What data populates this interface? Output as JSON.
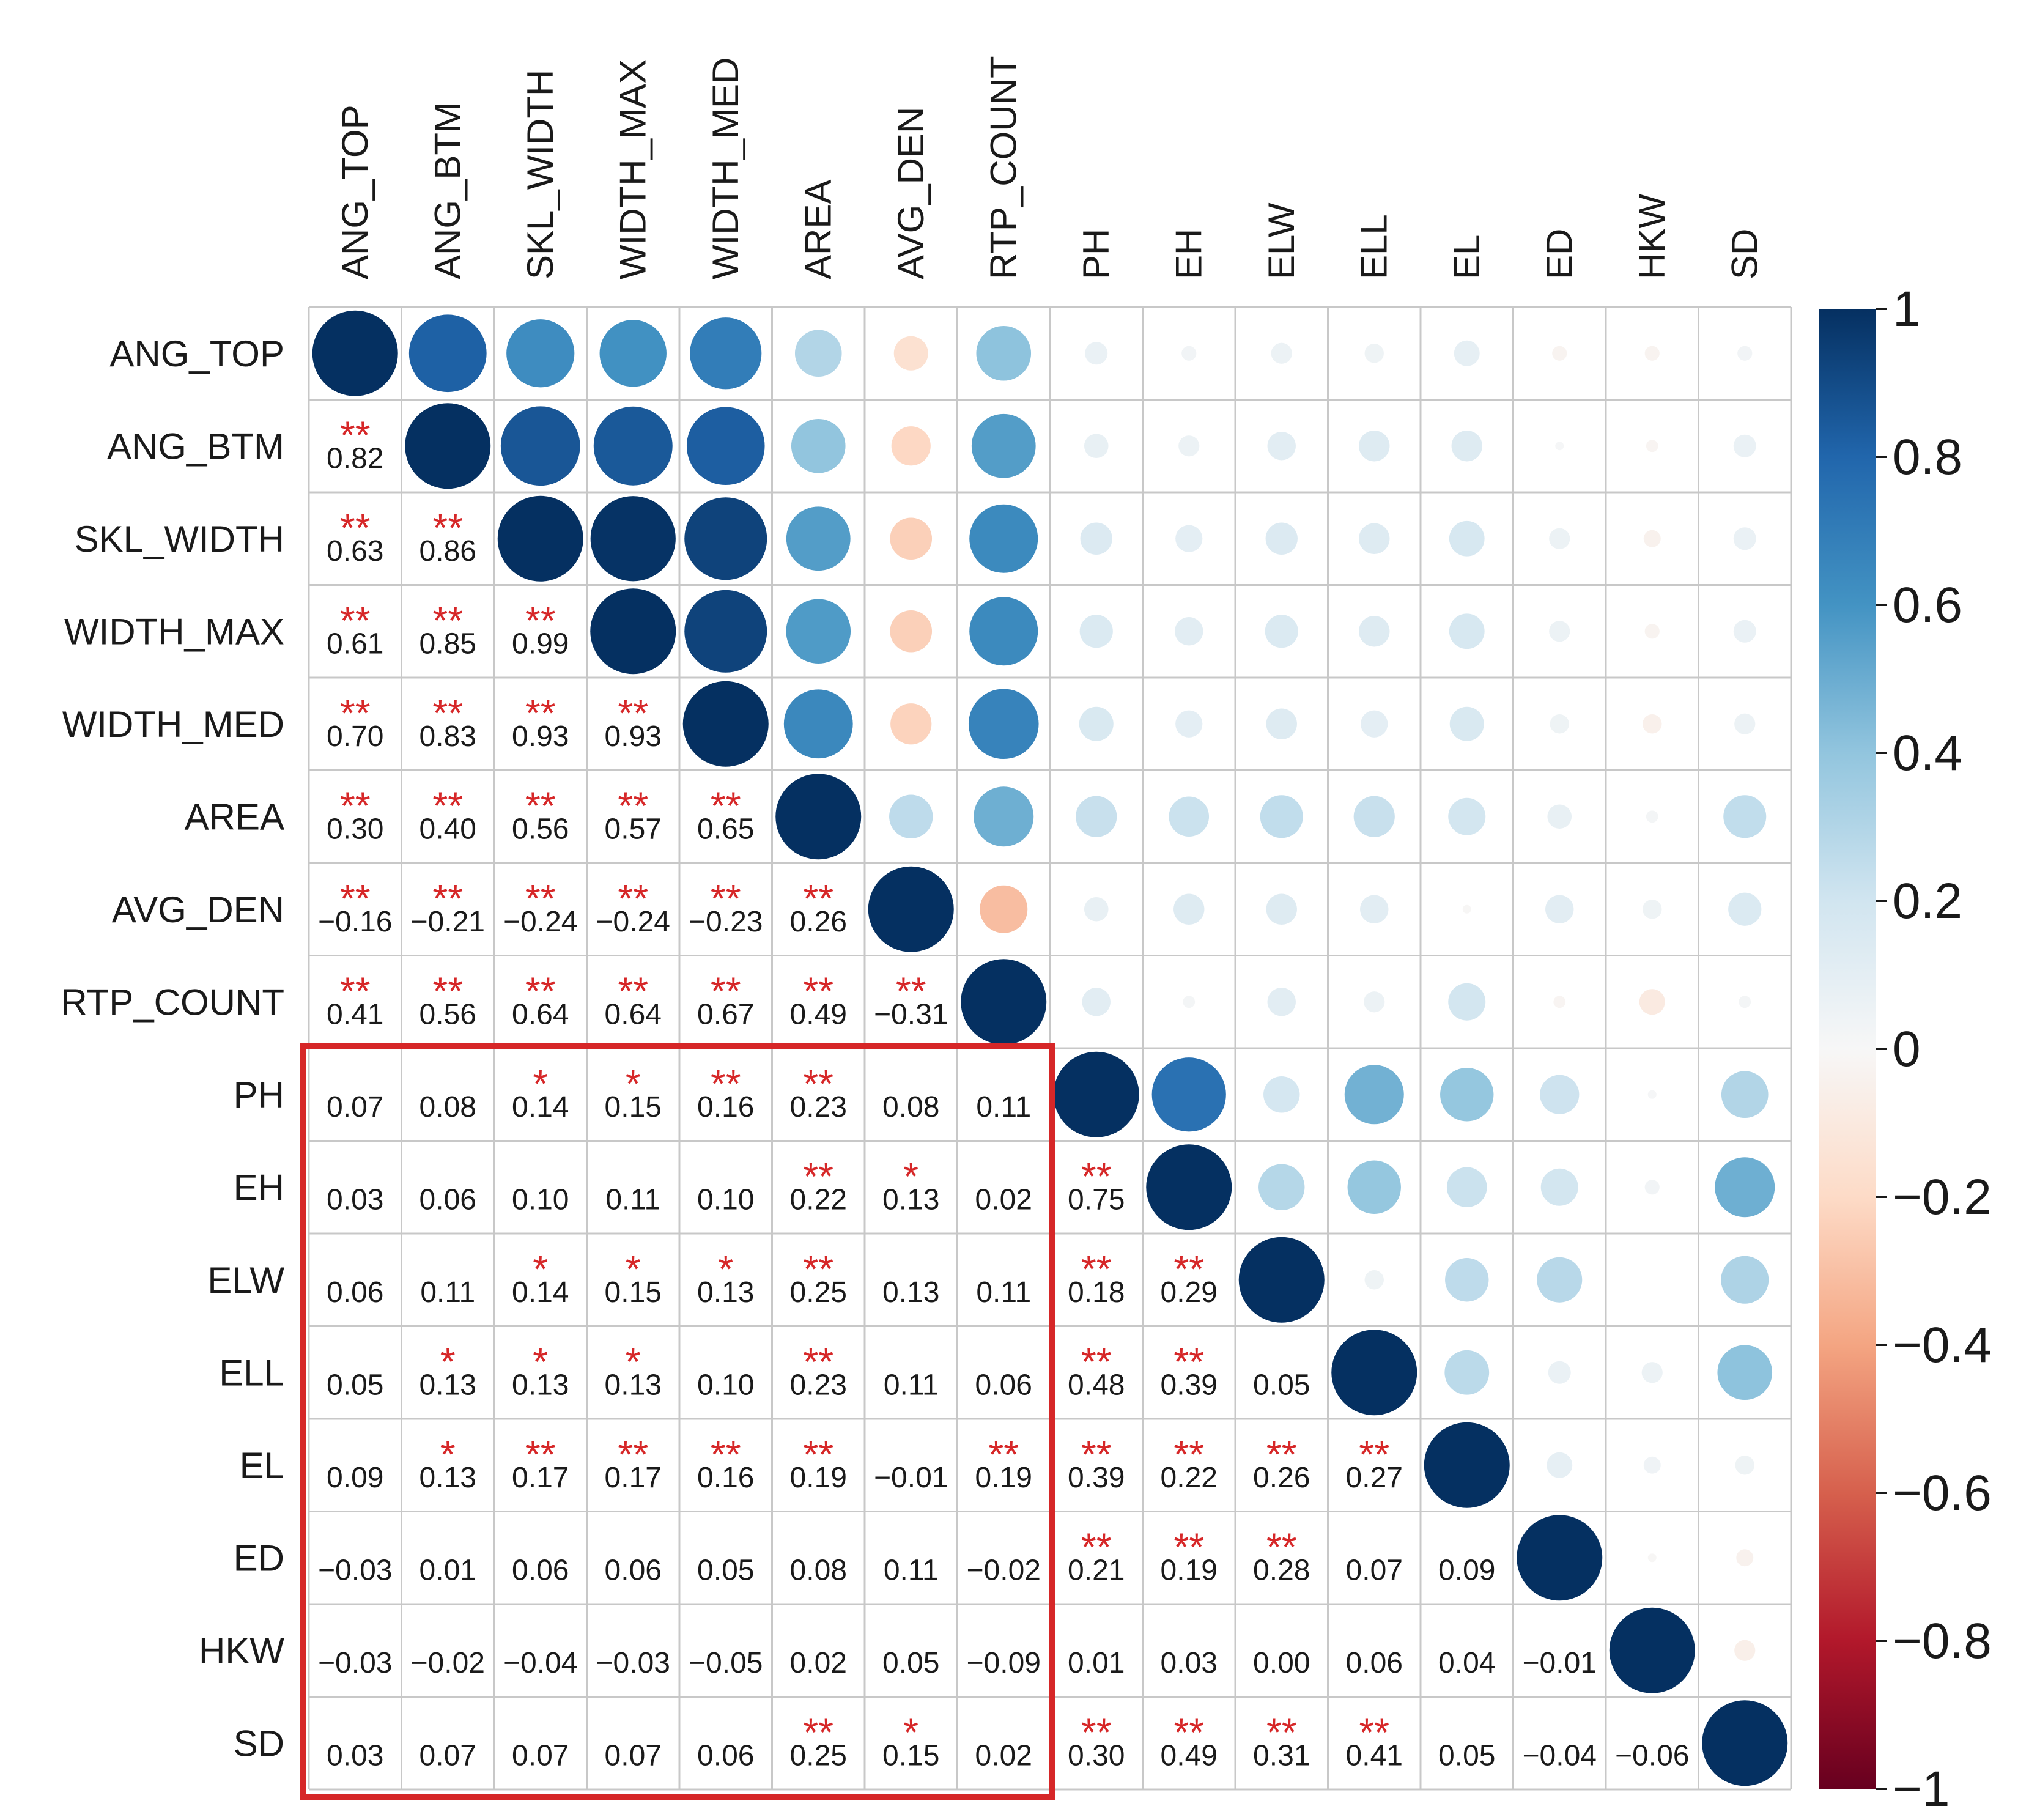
{
  "chart_data": {
    "type": "heatmap",
    "style": "correlation-matrix (lower triangle: coefficients with significance stars, upper triangle: circles sized and colored by coefficient)",
    "variables": [
      "ANG_TOP",
      "ANG_BTM",
      "SKL_WIDTH",
      "WIDTH_MAX",
      "WIDTH_MED",
      "AREA",
      "AVG_DEN",
      "RTP_COUNT",
      "PH",
      "EH",
      "ELW",
      "ELL",
      "EL",
      "ED",
      "HKW",
      "SD"
    ],
    "matrix": [
      [
        1.0,
        0.82,
        0.63,
        0.61,
        0.7,
        0.3,
        -0.16,
        0.41,
        0.07,
        0.03,
        0.06,
        0.05,
        0.09,
        -0.03,
        -0.03,
        0.03
      ],
      [
        0.82,
        1.0,
        0.86,
        0.85,
        0.83,
        0.4,
        -0.21,
        0.56,
        0.08,
        0.06,
        0.11,
        0.13,
        0.13,
        0.01,
        -0.02,
        0.07
      ],
      [
        0.63,
        0.86,
        1.0,
        0.99,
        0.93,
        0.56,
        -0.24,
        0.64,
        0.14,
        0.1,
        0.14,
        0.13,
        0.17,
        0.06,
        -0.04,
        0.07
      ],
      [
        0.61,
        0.85,
        0.99,
        1.0,
        0.93,
        0.57,
        -0.24,
        0.64,
        0.15,
        0.11,
        0.15,
        0.13,
        0.17,
        0.06,
        -0.03,
        0.07
      ],
      [
        0.7,
        0.83,
        0.93,
        0.93,
        1.0,
        0.65,
        -0.23,
        0.67,
        0.16,
        0.1,
        0.13,
        0.1,
        0.16,
        0.05,
        -0.05,
        0.06
      ],
      [
        0.3,
        0.4,
        0.56,
        0.57,
        0.65,
        1.0,
        0.26,
        0.49,
        0.23,
        0.22,
        0.25,
        0.23,
        0.19,
        0.08,
        0.02,
        0.25
      ],
      [
        -0.16,
        -0.21,
        -0.24,
        -0.24,
        -0.23,
        0.26,
        1.0,
        -0.31,
        0.08,
        0.13,
        0.13,
        0.11,
        -0.01,
        0.11,
        0.05,
        0.15
      ],
      [
        0.41,
        0.56,
        0.64,
        0.64,
        0.67,
        0.49,
        -0.31,
        1.0,
        0.11,
        0.02,
        0.11,
        0.06,
        0.19,
        -0.02,
        -0.09,
        0.02
      ],
      [
        0.07,
        0.08,
        0.14,
        0.15,
        0.16,
        0.23,
        0.08,
        0.11,
        1.0,
        0.75,
        0.18,
        0.48,
        0.39,
        0.21,
        0.01,
        0.3
      ],
      [
        0.03,
        0.06,
        0.1,
        0.11,
        0.1,
        0.22,
        0.13,
        0.02,
        0.75,
        1.0,
        0.29,
        0.39,
        0.22,
        0.19,
        0.03,
        0.49
      ],
      [
        0.06,
        0.11,
        0.14,
        0.15,
        0.13,
        0.25,
        0.13,
        0.11,
        0.18,
        0.29,
        1.0,
        0.05,
        0.26,
        0.28,
        0.0,
        0.31
      ],
      [
        0.05,
        0.13,
        0.13,
        0.13,
        0.1,
        0.23,
        0.11,
        0.06,
        0.48,
        0.39,
        0.05,
        1.0,
        0.27,
        0.07,
        0.06,
        0.41
      ],
      [
        0.09,
        0.13,
        0.17,
        0.17,
        0.16,
        0.19,
        -0.01,
        0.19,
        0.39,
        0.22,
        0.26,
        0.27,
        1.0,
        0.09,
        0.04,
        0.05
      ],
      [
        -0.03,
        0.01,
        0.06,
        0.06,
        0.05,
        0.08,
        0.11,
        -0.02,
        0.21,
        0.19,
        0.28,
        0.07,
        0.09,
        1.0,
        -0.01,
        -0.04
      ],
      [
        -0.03,
        -0.02,
        -0.04,
        -0.03,
        -0.05,
        0.02,
        0.05,
        -0.09,
        0.01,
        0.03,
        0.0,
        0.06,
        0.04,
        -0.01,
        1.0,
        -0.06
      ],
      [
        0.03,
        0.07,
        0.07,
        0.07,
        0.06,
        0.25,
        0.15,
        0.02,
        0.3,
        0.49,
        0.31,
        0.41,
        0.05,
        -0.04,
        -0.06,
        1.0
      ]
    ],
    "lower_labels": [
      [],
      [
        "0.82"
      ],
      [
        "0.63",
        "0.86"
      ],
      [
        "0.61",
        "0.85",
        "0.99"
      ],
      [
        "0.70",
        "0.83",
        "0.93",
        "0.93"
      ],
      [
        "0.30",
        "0.40",
        "0.56",
        "0.57",
        "0.65"
      ],
      [
        "−0.16",
        "−0.21",
        "−0.24",
        "−0.24",
        "−0.23",
        "0.26"
      ],
      [
        "0.41",
        "0.56",
        "0.64",
        "0.64",
        "0.67",
        "0.49",
        "−0.31"
      ],
      [
        "0.07",
        "0.08",
        "0.14",
        "0.15",
        "0.16",
        "0.23",
        "0.08",
        "0.11"
      ],
      [
        "0.03",
        "0.06",
        "0.10",
        "0.11",
        "0.10",
        "0.22",
        "0.13",
        "0.02",
        "0.75"
      ],
      [
        "0.06",
        "0.11",
        "0.14",
        "0.15",
        "0.13",
        "0.25",
        "0.13",
        "0.11",
        "0.18",
        "0.29"
      ],
      [
        "0.05",
        "0.13",
        "0.13",
        "0.13",
        "0.10",
        "0.23",
        "0.11",
        "0.06",
        "0.48",
        "0.39",
        "0.05"
      ],
      [
        "0.09",
        "0.13",
        "0.17",
        "0.17",
        "0.16",
        "0.19",
        "−0.01",
        "0.19",
        "0.39",
        "0.22",
        "0.26",
        "0.27"
      ],
      [
        "−0.03",
        "0.01",
        "0.06",
        "0.06",
        "0.05",
        "0.08",
        "0.11",
        "−0.02",
        "0.21",
        "0.19",
        "0.28",
        "0.07",
        "0.09"
      ],
      [
        "−0.03",
        "−0.02",
        "−0.04",
        "−0.03",
        "−0.05",
        "0.02",
        "0.05",
        "−0.09",
        "0.01",
        "0.03",
        "0.00",
        "0.06",
        "0.04",
        "−0.01"
      ],
      [
        "0.03",
        "0.07",
        "0.07",
        "0.07",
        "0.06",
        "0.25",
        "0.15",
        "0.02",
        "0.30",
        "0.49",
        "0.31",
        "0.41",
        "0.05",
        "−0.04",
        "−0.06"
      ]
    ],
    "significance": [
      [],
      [
        "**"
      ],
      [
        "**",
        "**"
      ],
      [
        "**",
        "**",
        "**"
      ],
      [
        "**",
        "**",
        "**",
        "**"
      ],
      [
        "**",
        "**",
        "**",
        "**",
        "**"
      ],
      [
        "**",
        "**",
        "**",
        "**",
        "**",
        "**"
      ],
      [
        "**",
        "**",
        "**",
        "**",
        "**",
        "**",
        "**"
      ],
      [
        "",
        "",
        "*",
        "*",
        "**",
        "**",
        "",
        ""
      ],
      [
        "",
        "",
        "",
        "",
        "",
        "**",
        "*",
        "",
        "**"
      ],
      [
        "",
        "",
        "*",
        "*",
        "*",
        "**",
        "",
        "",
        "**",
        "**"
      ],
      [
        "",
        "*",
        "*",
        "*",
        "",
        "**",
        "",
        "",
        "**",
        "**",
        ""
      ],
      [
        "",
        "*",
        "**",
        "**",
        "**",
        "**",
        "",
        "**",
        "**",
        "**",
        "**",
        "**"
      ],
      [
        "",
        "",
        "",
        "",
        "",
        "",
        "",
        "",
        "**",
        "**",
        "**",
        "",
        ""
      ],
      [
        "",
        "",
        "",
        "",
        "",
        "",
        "",
        "",
        "",
        "",
        "",
        "",
        "",
        ""
      ],
      [
        "",
        "",
        "",
        "",
        "",
        "**",
        "*",
        "",
        "**",
        "**",
        "**",
        "**",
        "",
        "",
        ""
      ]
    ],
    "highlight_box": {
      "rows": [
        "PH",
        "SD"
      ],
      "cols": [
        "ANG_TOP",
        "RTP_COUNT"
      ],
      "color": "#d62728"
    },
    "colorbar": {
      "range": [
        -1,
        1
      ],
      "ticks": [
        "1",
        "0.8",
        "0.6",
        "0.4",
        "0.2",
        "0",
        "−0.2",
        "−0.4",
        "−0.6",
        "−0.8",
        "−1"
      ],
      "tick_values": [
        1,
        0.8,
        0.6,
        0.4,
        0.2,
        0,
        -0.2,
        -0.4,
        -0.6,
        -0.8,
        -1
      ],
      "colormap": "RdBu",
      "stops": [
        "#67001f",
        "#b2182b",
        "#d6604d",
        "#f4a582",
        "#fddbc7",
        "#f7f7f7",
        "#d1e5f0",
        "#92c5de",
        "#4393c3",
        "#2166ac",
        "#053061"
      ]
    },
    "colors": {
      "grid": "#c8c8c8",
      "stars": "#d62728",
      "text": "#1a1a1a"
    }
  }
}
